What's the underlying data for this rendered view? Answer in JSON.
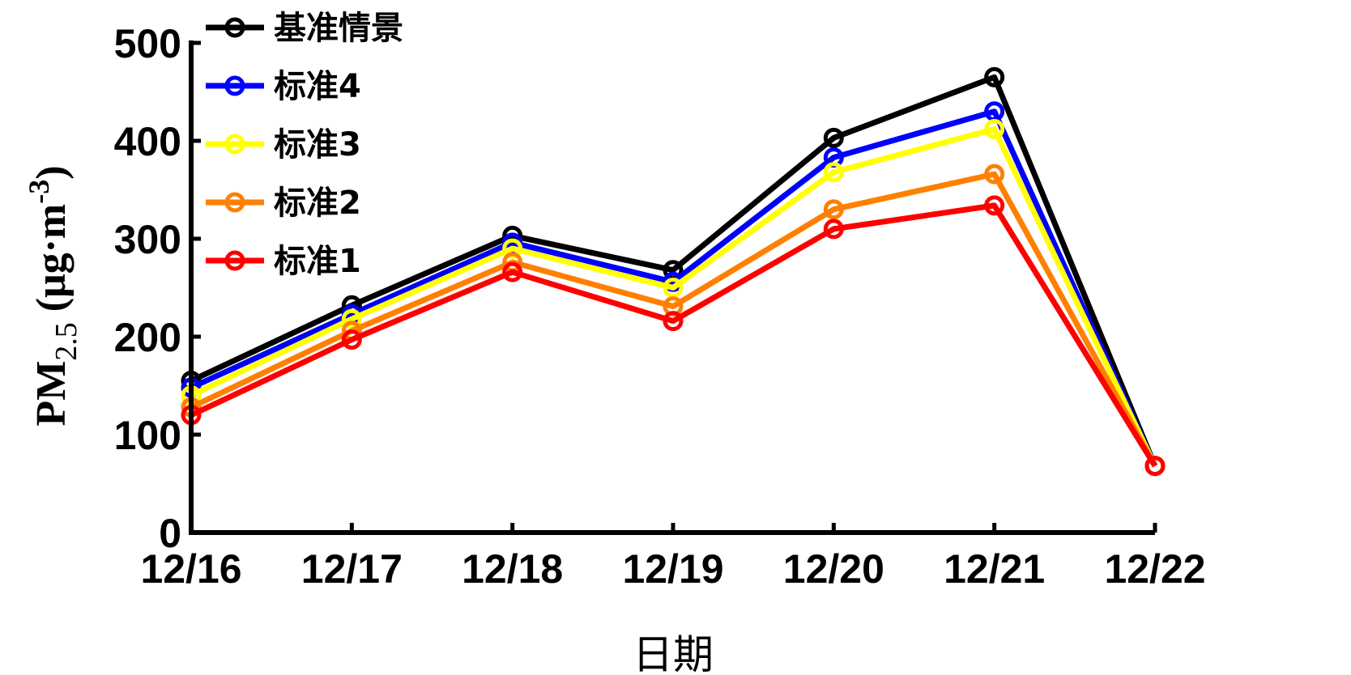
{
  "chart_data": {
    "type": "line",
    "categories": [
      "12/16",
      "12/17",
      "12/18",
      "12/19",
      "12/20",
      "12/21",
      "12/22"
    ],
    "xlabel": "日期",
    "ylabel": {
      "main": "PM",
      "subscript": "2.5",
      "unit_open": " (μg·m",
      "unit_sup": "-3",
      "unit_close": ")"
    },
    "ylim": [
      0,
      500
    ],
    "yticks": [
      0,
      100,
      200,
      300,
      400,
      500
    ],
    "grid": false,
    "legend_position": "top-left",
    "series": [
      {
        "name": "基准情景",
        "color": "#000000",
        "values": [
          155,
          232,
          303,
          268,
          403,
          465,
          68
        ]
      },
      {
        "name": "标准4",
        "color": "#0000FF",
        "values": [
          148,
          223,
          296,
          256,
          383,
          430,
          68
        ]
      },
      {
        "name": "标准3",
        "color": "#FFFF00",
        "values": [
          140,
          218,
          290,
          250,
          368,
          412,
          68
        ]
      },
      {
        "name": "标准2",
        "color": "#FF8000",
        "values": [
          128,
          206,
          276,
          231,
          330,
          366,
          68
        ]
      },
      {
        "name": "标准1",
        "color": "#FF0000",
        "values": [
          120,
          197,
          266,
          216,
          310,
          334,
          68
        ]
      }
    ]
  }
}
